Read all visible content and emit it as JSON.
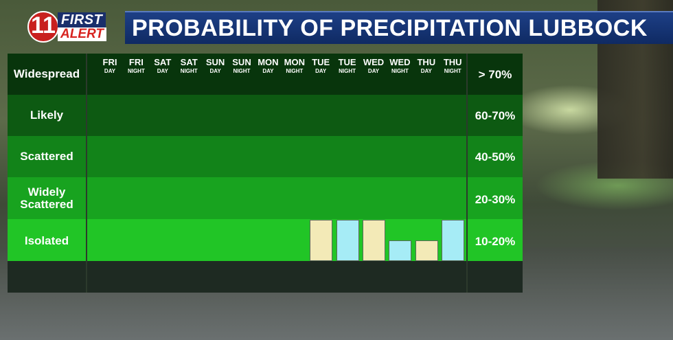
{
  "header": {
    "logo_number": "11",
    "logo_first": "FIRST",
    "logo_alert": "ALERT",
    "title": "PROBABILITY OF PRECIPITATION LUBBOCK"
  },
  "colors": {
    "band_widespread": "#08350c",
    "band_likely": "#0d5a12",
    "band_scattered": "#128319",
    "band_widely_scattered": "#18a31f",
    "band_isolated": "#21c526",
    "day_bar": "#f3eab7",
    "night_bar": "#a6ecf6"
  },
  "chart_data": {
    "type": "bar",
    "title": "PROBABILITY OF PRECIPITATION LUBBOCK",
    "categories": [
      {
        "day": "FRI",
        "part": "DAY"
      },
      {
        "day": "FRI",
        "part": "NIGHT"
      },
      {
        "day": "SAT",
        "part": "DAY"
      },
      {
        "day": "SAT",
        "part": "NIGHT"
      },
      {
        "day": "SUN",
        "part": "DAY"
      },
      {
        "day": "SUN",
        "part": "NIGHT"
      },
      {
        "day": "MON",
        "part": "DAY"
      },
      {
        "day": "MON",
        "part": "NIGHT"
      },
      {
        "day": "TUE",
        "part": "DAY"
      },
      {
        "day": "TUE",
        "part": "NIGHT"
      },
      {
        "day": "WED",
        "part": "DAY"
      },
      {
        "day": "WED",
        "part": "NIGHT"
      },
      {
        "day": "THU",
        "part": "DAY"
      },
      {
        "day": "THU",
        "part": "NIGHT"
      }
    ],
    "values": [
      0,
      0,
      0,
      0,
      0,
      0,
      0,
      0,
      20,
      20,
      20,
      10,
      10,
      20
    ],
    "ylim": [
      0,
      100
    ],
    "categories_scale": [
      {
        "label": "Widespread",
        "range": "> 70%"
      },
      {
        "label": "Likely",
        "range": "60-70%"
      },
      {
        "label": "Scattered",
        "range": "40-50%"
      },
      {
        "label": "Widely Scattered",
        "range": "20-30%"
      },
      {
        "label": "Isolated",
        "range": "10-20%"
      }
    ]
  }
}
